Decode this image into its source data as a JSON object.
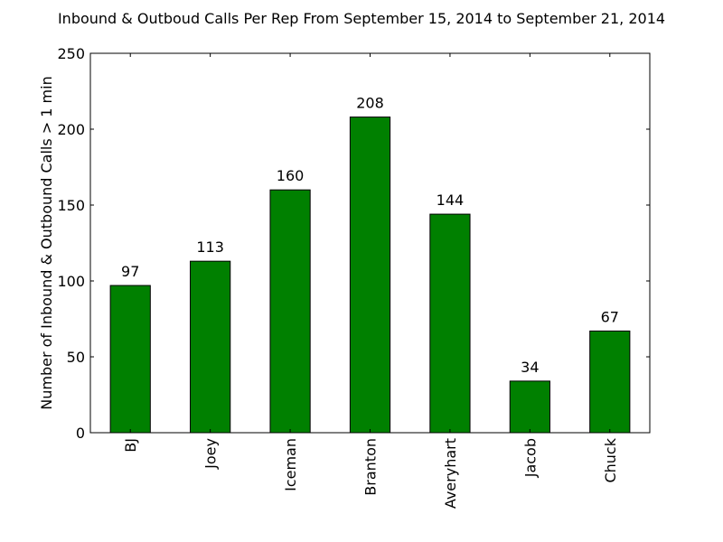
{
  "colors": {
    "bar_fill": "#008000",
    "bar_stroke": "#000000",
    "axis": "#000000",
    "background": "#ffffff"
  },
  "chart_data": {
    "type": "bar",
    "title": "Inbound & Outboud Calls Per Rep From September 15, 2014 to September 21, 2014",
    "xlabel": "",
    "ylabel": "Number of Inbound & Outbound Calls > 1 min",
    "categories": [
      "BJ",
      "Joey",
      "Iceman",
      "Branton",
      "Averyhart",
      "Jacob",
      "Chuck"
    ],
    "values": [
      97,
      113,
      160,
      208,
      144,
      34,
      67
    ],
    "data_labels": [
      "97",
      "113",
      "160",
      "208",
      "144",
      "34",
      "67"
    ],
    "ylim": [
      0,
      250
    ],
    "yticks": [
      0,
      50,
      100,
      150,
      200,
      250
    ],
    "ytick_labels": [
      "0",
      "50",
      "100",
      "150",
      "200",
      "250"
    ],
    "grid": false,
    "legend": "none"
  }
}
